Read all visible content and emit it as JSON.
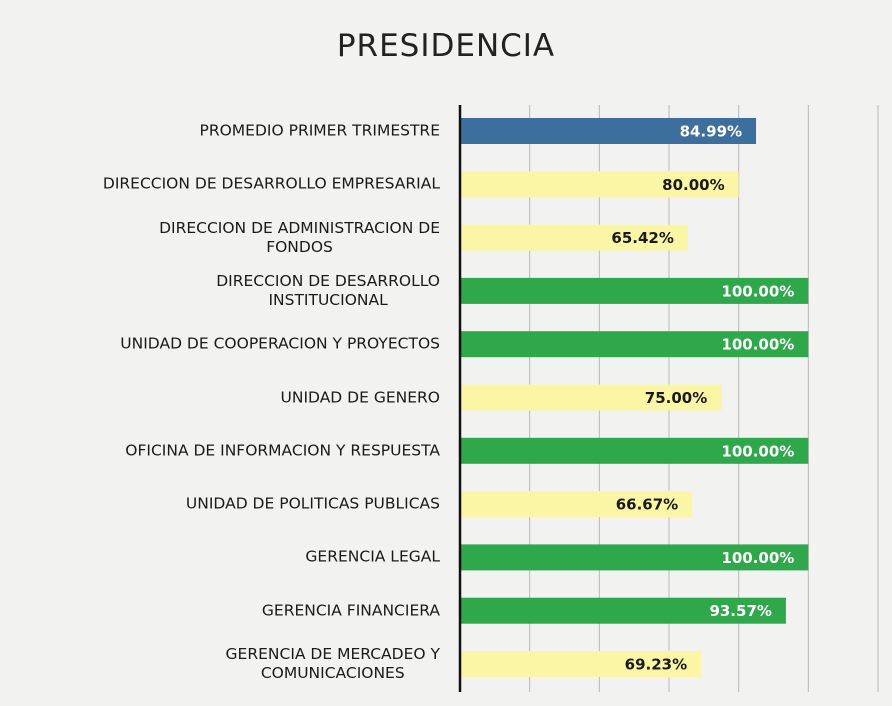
{
  "chart_data": {
    "type": "bar",
    "orientation": "horizontal",
    "title": "PRESIDENCIA",
    "categories": [
      "PROMEDIO PRIMER TRIMESTRE",
      "DIRECCION DE DESARROLLO EMPRESARIAL",
      "DIRECCION DE ADMINISTRACION DE\nFONDOS",
      "DIRECCION DE DESARROLLO\nINSTITUCIONAL",
      "UNIDAD DE COOPERACION Y PROYECTOS",
      "UNIDAD DE GENERO",
      "OFICINA DE INFORMACION Y RESPUESTA",
      "UNIDAD DE POLITICAS PUBLICAS",
      "GERENCIA LEGAL",
      "GERENCIA FINANCIERA",
      "GERENCIA DE MERCADEO Y\nCOMUNICACIONES"
    ],
    "values": [
      84.99,
      80.0,
      65.42,
      100.0,
      100.0,
      75.0,
      100.0,
      66.67,
      100.0,
      93.57,
      69.23
    ],
    "value_labels": [
      "84.99%",
      "80.00%",
      "65.42%",
      "100.00%",
      "100.00%",
      "75.00%",
      "100.00%",
      "66.67%",
      "100.00%",
      "93.57%",
      "69.23%"
    ],
    "colors": [
      "#3d6f9e",
      "#faf6a6",
      "#faf6a6",
      "#2fa84b",
      "#2fa84b",
      "#faf6a6",
      "#2fa84b",
      "#faf6a6",
      "#2fa84b",
      "#2fa84b",
      "#faf6a6"
    ],
    "xlim": [
      0,
      120
    ],
    "xticks": [
      0,
      20,
      40,
      60,
      80,
      100,
      120
    ],
    "grid": true
  }
}
